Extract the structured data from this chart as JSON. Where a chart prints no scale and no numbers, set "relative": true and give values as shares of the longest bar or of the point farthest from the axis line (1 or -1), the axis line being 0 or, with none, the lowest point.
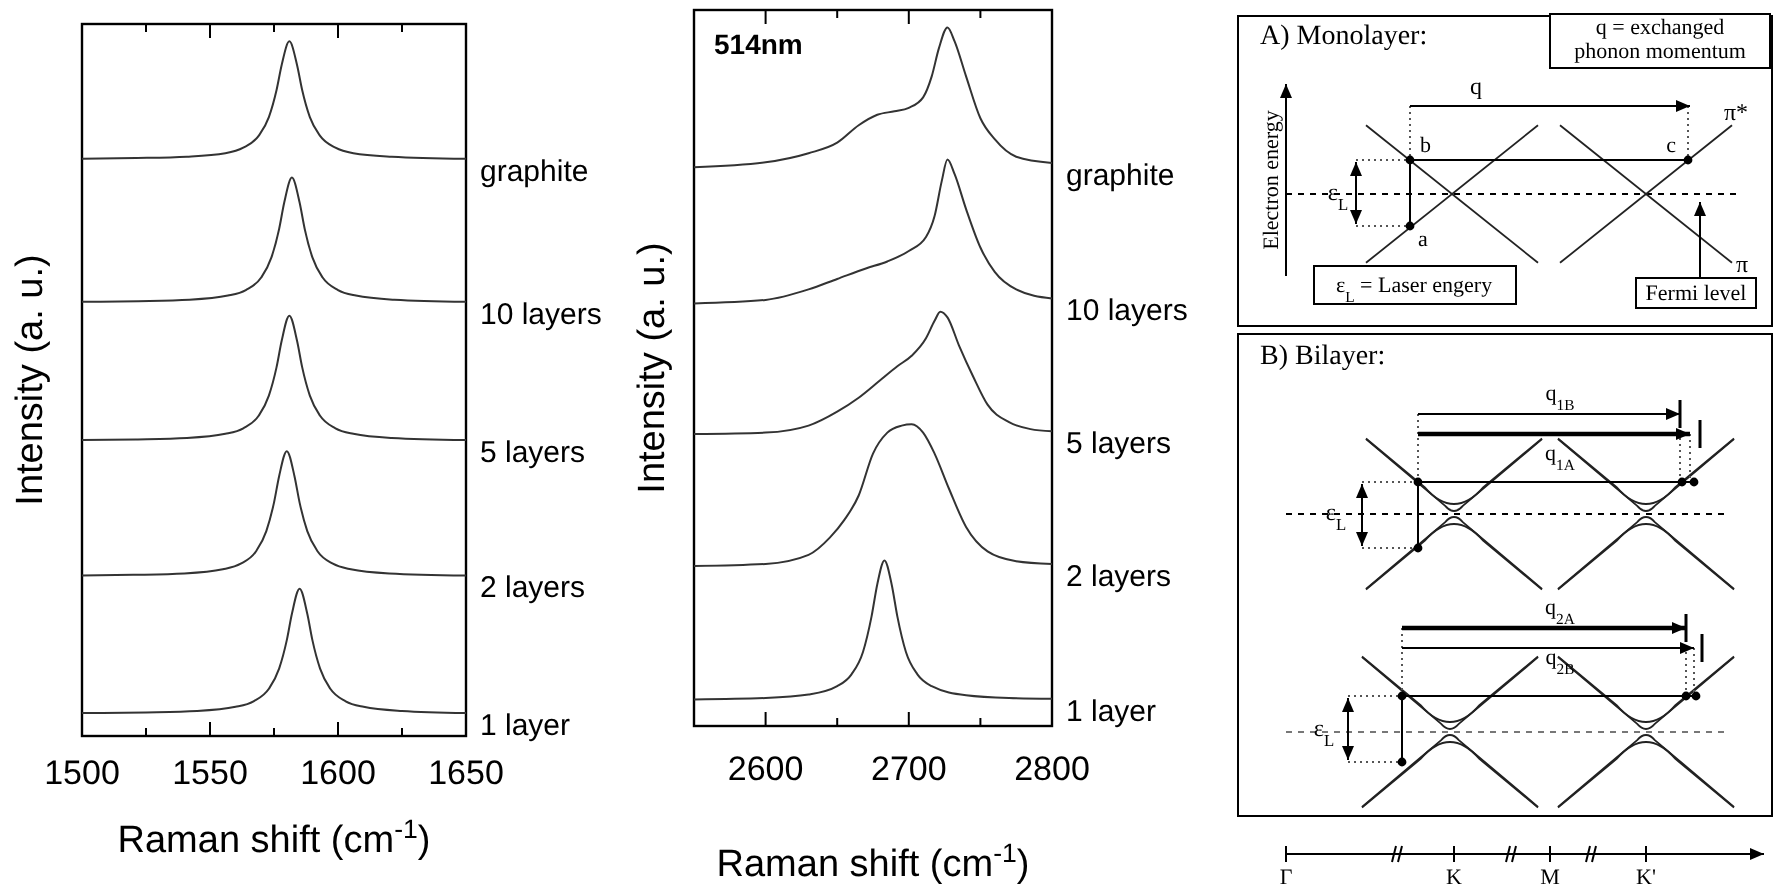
{
  "chart_data": [
    {
      "type": "line",
      "relative": true,
      "xlabel": "Raman shift (cm$^{-1}$)",
      "ylabel": "Intensity (a. u.)",
      "xlim": [
        1500,
        1650
      ],
      "xticks": [
        1500,
        {
          "value": 1525,
          "label": null
        },
        1550,
        {
          "value": 1575,
          "label": null
        },
        1600,
        {
          "value": 1625,
          "label": null
        },
        1650
      ],
      "series": [
        {
          "name": "graphite",
          "color": "#333333",
          "x": [
            1500,
            1521,
            1541,
            1556,
            1563,
            1569,
            1573,
            1576,
            1578,
            1581,
            1584,
            1586,
            1589,
            1593,
            1599,
            1606,
            1621,
            1650
          ],
          "values": [
            0.831,
            0.832,
            0.834,
            0.839,
            0.847,
            0.864,
            0.891,
            0.93,
            0.966,
            1.0,
            0.966,
            0.93,
            0.891,
            0.864,
            0.847,
            0.839,
            0.834,
            0.831
          ]
        },
        {
          "name": "10 layers",
          "color": "#333333",
          "x": [
            1500,
            1522,
            1542,
            1557,
            1564,
            1570,
            1574,
            1577,
            1579,
            1582,
            1585,
            1587,
            1590,
            1594,
            1600,
            1607,
            1622,
            1650
          ],
          "values": [
            0.625,
            0.626,
            0.628,
            0.634,
            0.642,
            0.66,
            0.689,
            0.73,
            0.768,
            0.804,
            0.768,
            0.73,
            0.689,
            0.66,
            0.642,
            0.634,
            0.628,
            0.625
          ]
        },
        {
          "name": "5 layers",
          "color": "#333333",
          "x": [
            1500,
            1521,
            1541,
            1556,
            1563,
            1569,
            1573,
            1576,
            1578,
            1581,
            1584,
            1586,
            1589,
            1593,
            1599,
            1606,
            1621,
            1650
          ],
          "values": [
            0.426,
            0.427,
            0.429,
            0.435,
            0.443,
            0.461,
            0.49,
            0.531,
            0.569,
            0.605,
            0.569,
            0.531,
            0.49,
            0.461,
            0.443,
            0.435,
            0.429,
            0.426
          ]
        },
        {
          "name": "2 layers",
          "color": "#333333",
          "x": [
            1500,
            1520,
            1540,
            1555,
            1562,
            1568,
            1572,
            1575,
            1577,
            1580,
            1583,
            1585,
            1588,
            1592,
            1598,
            1605,
            1620,
            1650
          ],
          "values": [
            0.231,
            0.232,
            0.234,
            0.24,
            0.248,
            0.266,
            0.295,
            0.336,
            0.374,
            0.41,
            0.374,
            0.336,
            0.295,
            0.266,
            0.248,
            0.24,
            0.234,
            0.231
          ]
        },
        {
          "name": "1 layer",
          "color": "#333333",
          "x": [
            1500,
            1525,
            1545,
            1560,
            1567,
            1573,
            1577,
            1580,
            1582,
            1585,
            1588,
            1590,
            1593,
            1597,
            1603,
            1610,
            1625,
            1650
          ],
          "values": [
            0.033,
            0.034,
            0.036,
            0.042,
            0.05,
            0.068,
            0.097,
            0.138,
            0.176,
            0.212,
            0.176,
            0.138,
            0.097,
            0.068,
            0.05,
            0.042,
            0.036,
            0.033
          ]
        }
      ]
    },
    {
      "type": "line",
      "relative": true,
      "xlabel": "Raman shift (cm$^{-1}$)",
      "ylabel": "Intensity (a. u.)",
      "annotations": [
        "514nm"
      ],
      "xlim": [
        2550,
        2800
      ],
      "xticks": [
        {
          "value": 2550,
          "label": null
        },
        2600,
        {
          "value": 2650,
          "label": null
        },
        2700,
        {
          "value": 2750,
          "label": null
        },
        2800
      ],
      "series": [
        {
          "name": "graphite",
          "color": "#333333",
          "x": [
            2550,
            2600,
            2630,
            2650,
            2665,
            2678,
            2690,
            2700,
            2710,
            2716,
            2721,
            2727,
            2732,
            2740,
            2750,
            2760,
            2775,
            2800
          ],
          "values": [
            0.8,
            0.807,
            0.82,
            0.835,
            0.86,
            0.875,
            0.88,
            0.885,
            0.9,
            0.93,
            0.97,
            1.0,
            0.98,
            0.93,
            0.87,
            0.84,
            0.815,
            0.806
          ]
        },
        {
          "name": "10 layers",
          "color": "#333333",
          "x": [
            2550,
            2600,
            2630,
            2650,
            2670,
            2685,
            2700,
            2712,
            2718,
            2723,
            2727,
            2732,
            2740,
            2750,
            2760,
            2775,
            2800
          ],
          "values": [
            0.605,
            0.61,
            0.625,
            0.64,
            0.655,
            0.665,
            0.68,
            0.7,
            0.73,
            0.78,
            0.811,
            0.79,
            0.74,
            0.685,
            0.65,
            0.625,
            0.612
          ]
        },
        {
          "name": "5 layers",
          "color": "#333333",
          "x": [
            2550,
            2600,
            2630,
            2650,
            2665,
            2680,
            2692,
            2702,
            2712,
            2718,
            2722,
            2727,
            2735,
            2745,
            2755,
            2770,
            2785,
            2800
          ],
          "values": [
            0.418,
            0.42,
            0.43,
            0.45,
            0.47,
            0.495,
            0.515,
            0.53,
            0.555,
            0.58,
            0.593,
            0.585,
            0.545,
            0.5,
            0.46,
            0.435,
            0.425,
            0.422
          ]
        },
        {
          "name": "2 layers",
          "color": "#333333",
          "x": [
            2550,
            2600,
            2630,
            2645,
            2655,
            2665,
            2675,
            2685,
            2695,
            2702,
            2710,
            2718,
            2728,
            2740,
            2755,
            2775,
            2800
          ],
          "values": [
            0.229,
            0.232,
            0.245,
            0.27,
            0.295,
            0.33,
            0.39,
            0.42,
            0.43,
            0.432,
            0.42,
            0.39,
            0.34,
            0.285,
            0.25,
            0.236,
            0.232
          ]
        },
        {
          "name": "1 layer",
          "color": "#333333",
          "x": [
            2550,
            2600,
            2630,
            2650,
            2660,
            2668,
            2674,
            2678,
            2683,
            2688,
            2692,
            2698,
            2706,
            2716,
            2740,
            2770,
            2800
          ],
          "values": [
            0.038,
            0.04,
            0.045,
            0.057,
            0.074,
            0.106,
            0.157,
            0.203,
            0.237,
            0.203,
            0.157,
            0.106,
            0.074,
            0.057,
            0.044,
            0.04,
            0.039
          ]
        }
      ]
    },
    {
      "type": "other",
      "annotations": [
        "A) Monolayer:",
        "q = exchanged\nphonon momentum",
        "Electron energy",
        "q",
        "b",
        "c",
        "a",
        "π*",
        "π",
        "ε$_{L}$",
        "ε$_{L}$ = Laser engery",
        "Fermi level",
        "B) Bilayer:",
        "q$_{1B}$",
        "q$_{1A}$",
        "ε$_{L}$",
        "q$_{2A}$",
        "q$_{2B}$",
        "ε$_{L}$",
        "Γ",
        "K",
        "M",
        "K'"
      ]
    }
  ]
}
